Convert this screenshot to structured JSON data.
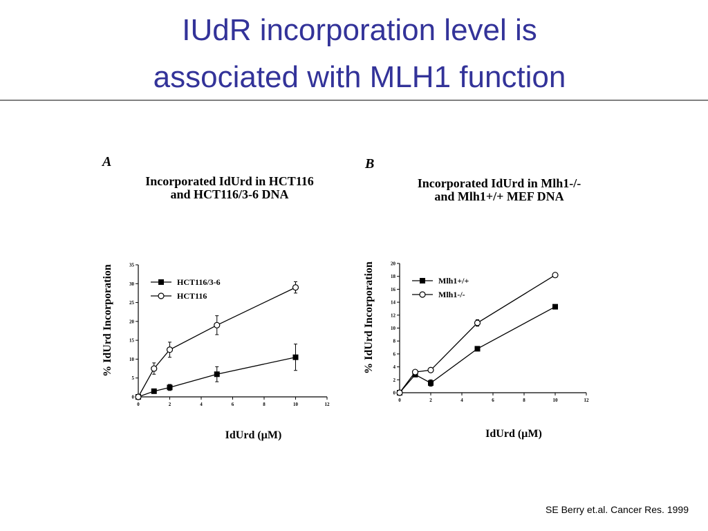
{
  "slide": {
    "title": [
      "IUdR incorporation level is",
      "associated with MLH1 function"
    ],
    "citation": "SE Berry et.al. Cancer Res. 1999"
  },
  "chart_data": [
    {
      "type": "line",
      "panel": "A",
      "title": [
        "Incorporated IdUrd in HCT116",
        "and HCT116/3-6 DNA"
      ],
      "y_label": "% IdUrd Incorporation",
      "x_label": "IdUrd (µM)",
      "xlim": [
        0,
        12
      ],
      "xticks": [
        0,
        2,
        4,
        6,
        8,
        10,
        12
      ],
      "ylim": [
        0,
        35
      ],
      "yticks": [
        0,
        5,
        10,
        15,
        20,
        25,
        30,
        35
      ],
      "legend": "upper left",
      "x": [
        0,
        1,
        2,
        5,
        10
      ],
      "series": [
        {
          "name": "HCT116/3-6",
          "color": "#000000",
          "marker": "square",
          "values": [
            0,
            1.5,
            2.5,
            6,
            10.5
          ],
          "errors": [
            0,
            0.5,
            0.8,
            2,
            3.5
          ]
        },
        {
          "name": "HCT116",
          "color": "#000000",
          "marker": "circle",
          "values": [
            0,
            7.5,
            12.5,
            19,
            29
          ],
          "errors": [
            0,
            1.5,
            2,
            2.5,
            1.5
          ]
        }
      ]
    },
    {
      "type": "line",
      "panel": "B",
      "title": [
        "Incorporated IdUrd in Mlh1-/-",
        "and Mlh1+/+ MEF DNA"
      ],
      "y_label": "% IdUrd Incorporation",
      "x_label": "IdUrd (µM)",
      "xlim": [
        0,
        12
      ],
      "xticks": [
        0,
        2,
        4,
        6,
        8,
        10,
        12
      ],
      "ylim": [
        0,
        20
      ],
      "yticks": [
        0,
        2,
        4,
        6,
        8,
        10,
        12,
        14,
        16,
        18,
        20
      ],
      "legend": "upper left",
      "x": [
        0,
        1,
        2,
        5,
        10
      ],
      "series": [
        {
          "name": "Mlh1+/+",
          "color": "#000000",
          "marker": "square",
          "values": [
            0,
            2.8,
            1.5,
            6.8,
            13.3
          ],
          "errors": [
            0,
            0.3,
            0.5,
            0.3,
            0.2
          ]
        },
        {
          "name": "Mlh1-/-",
          "color": "#000000",
          "marker": "circle",
          "values": [
            0,
            3.2,
            3.5,
            10.8,
            18.2
          ],
          "errors": [
            0,
            0.3,
            0.3,
            0.5,
            0.2
          ]
        }
      ]
    }
  ]
}
